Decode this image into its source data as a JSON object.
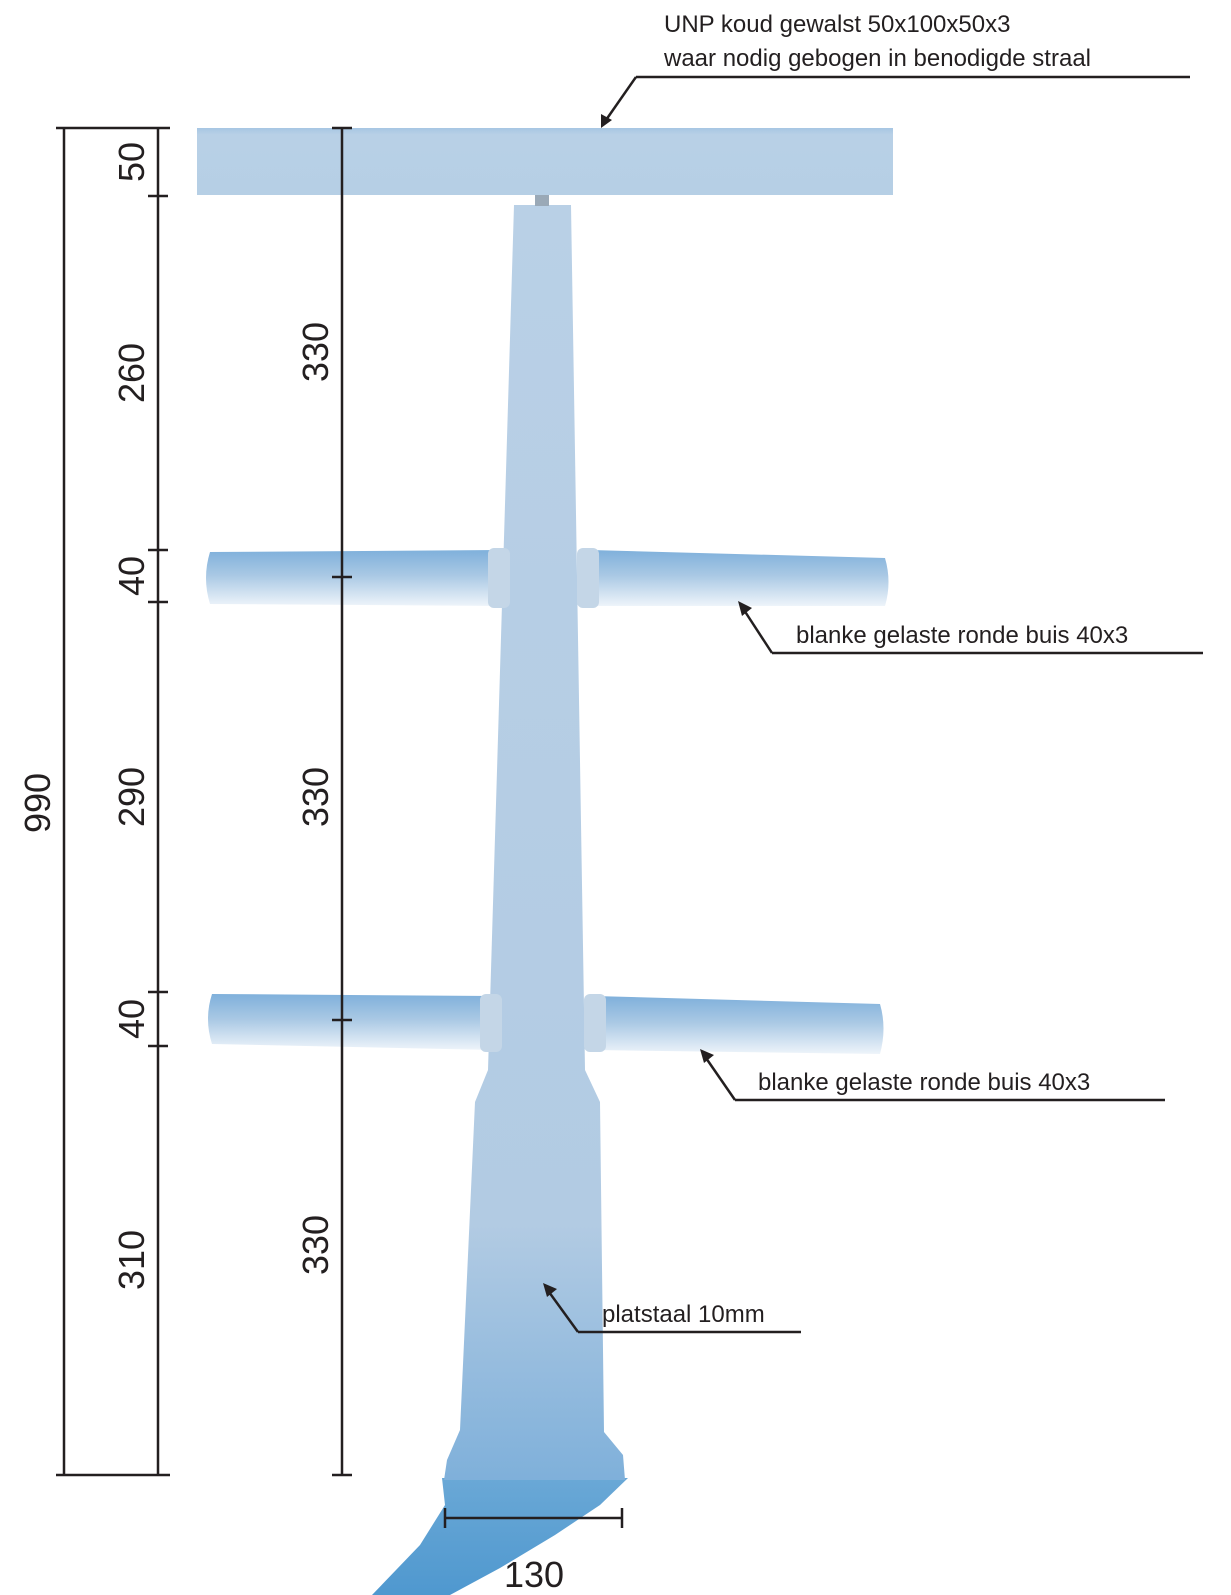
{
  "dimensions": {
    "total_height": "990",
    "segments": {
      "top_rail": "50",
      "upper_gap": "260",
      "upper_tube": "40",
      "middle_gap": "290",
      "lower_tube": "40",
      "bottom_gap": "310"
    },
    "spacing": {
      "top": "330",
      "middle": "330",
      "bottom": "330"
    },
    "base_width": "130"
  },
  "callouts": {
    "top_rail_line1": "UNP koud gewalst 50x100x50x3",
    "top_rail_line2": "waar nodig gebogen in benodigde straal",
    "upper_tube": "blanke gelaste ronde buis 40x3",
    "lower_tube": "blanke gelaste ronde buis 40x3",
    "post": "platstaal 10mm"
  },
  "colors": {
    "steel_light": "#b5cde3",
    "steel_mid": "#9fbfdc",
    "steel_dark": "#5b9fd2",
    "line": "#231f20"
  }
}
